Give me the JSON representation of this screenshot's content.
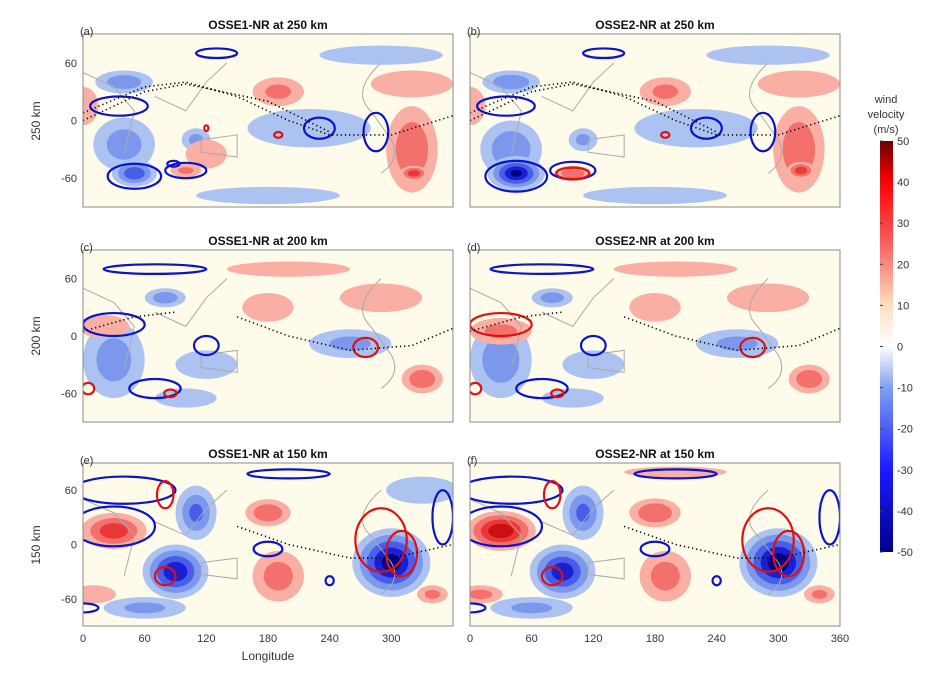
{
  "chart_data": {
    "type": "heatmap",
    "colorbar": {
      "label": [
        "wind",
        "velocity",
        "(m/s)"
      ],
      "range": [
        -50,
        50
      ],
      "ticks": [
        50,
        40,
        30,
        20,
        10,
        0,
        -10,
        -20,
        -30,
        -40,
        -50
      ],
      "colormap": {
        "negative_max": "#00008b",
        "negative": "#3344ee",
        "zero": "#fffdf2",
        "positive": "#ee2222",
        "positive_max": "#7a0000"
      }
    },
    "xlabel": "Longitude",
    "xlim": [
      0,
      360
    ],
    "ylim": [
      -90,
      90
    ],
    "xticks_left": [
      "0",
      "60",
      "120",
      "180",
      "240",
      "300"
    ],
    "xticks_right": [
      "0",
      "60",
      "120",
      "180",
      "240",
      "300",
      "360"
    ],
    "yticks": [
      "60",
      "0",
      "-60"
    ],
    "contour_colors": {
      "positive": "#dd1111",
      "negative": "#0a14c8",
      "track": "#000000"
    },
    "rows": [
      {
        "ylabel": "250 km"
      },
      {
        "ylabel": "200 km"
      },
      {
        "ylabel": "150 km"
      }
    ],
    "panels": [
      {
        "tag": "(a)",
        "title": "OSSE1-NR at 250 km",
        "field": [
          [
            40,
            40,
            28,
            12,
            -20
          ],
          [
            40,
            -25,
            30,
            28,
            -18
          ],
          [
            50,
            -55,
            22,
            14,
            -32
          ],
          [
            110,
            -20,
            14,
            12,
            -15
          ],
          [
            120,
            -35,
            20,
            15,
            6
          ],
          [
            100,
            -52,
            15,
            7,
            15
          ],
          [
            190,
            30,
            25,
            15,
            15
          ],
          [
            220,
            -8,
            60,
            20,
            -12
          ],
          [
            320,
            -30,
            25,
            45,
            22
          ],
          [
            322,
            -55,
            14,
            8,
            30
          ],
          [
            290,
            68,
            60,
            10,
            -12
          ],
          [
            180,
            -78,
            70,
            9,
            -12
          ],
          [
            320,
            38,
            40,
            14,
            10
          ],
          [
            0,
            15,
            15,
            20,
            8
          ]
        ],
        "contours": [
          [
            50,
            -58,
            26,
            13,
            -1
          ],
          [
            35,
            15,
            28,
            10,
            -1
          ],
          [
            130,
            70,
            20,
            5,
            -1
          ],
          [
            230,
            -8,
            15,
            11,
            -1
          ],
          [
            285,
            -12,
            12,
            20,
            -1
          ],
          [
            100,
            -52,
            20,
            8,
            -1
          ],
          [
            88,
            -45,
            6,
            3,
            -1
          ],
          [
            190,
            -15,
            4,
            3,
            1
          ],
          [
            120,
            -8,
            2,
            3,
            1
          ]
        ],
        "tracks": [
          [
            [
              0,
              8
            ],
            [
              60,
              35
            ],
            [
              100,
              40
            ],
            [
              150,
              25
            ],
            [
              200,
              0
            ],
            [
              240,
              -15
            ],
            [
              300,
              -15
            ],
            [
              360,
              5
            ]
          ],
          [
            [
              0,
              0
            ],
            [
              60,
              30
            ],
            [
              100,
              38
            ],
            [
              180,
              20
            ],
            [
              240,
              -12
            ]
          ]
        ]
      },
      {
        "tag": "(b)",
        "title": "OSSE2-NR at 250 km",
        "field": [
          [
            40,
            40,
            28,
            12,
            -22
          ],
          [
            40,
            -30,
            30,
            30,
            -22
          ],
          [
            45,
            -55,
            28,
            18,
            -45
          ],
          [
            110,
            -20,
            14,
            12,
            -15
          ],
          [
            100,
            -55,
            18,
            8,
            22
          ],
          [
            190,
            30,
            25,
            15,
            15
          ],
          [
            220,
            -8,
            60,
            20,
            -12
          ],
          [
            320,
            -30,
            25,
            45,
            22
          ],
          [
            322,
            -52,
            14,
            9,
            30
          ],
          [
            290,
            68,
            60,
            10,
            -12
          ],
          [
            180,
            -78,
            70,
            9,
            -12
          ],
          [
            320,
            38,
            40,
            14,
            12
          ],
          [
            0,
            15,
            15,
            20,
            8
          ]
        ],
        "contours": [
          [
            45,
            -58,
            30,
            16,
            -1
          ],
          [
            35,
            15,
            28,
            10,
            -1
          ],
          [
            130,
            70,
            20,
            5,
            -1
          ],
          [
            230,
            -8,
            15,
            11,
            -1
          ],
          [
            285,
            -12,
            12,
            20,
            -1
          ],
          [
            100,
            -52,
            22,
            9,
            -1
          ],
          [
            190,
            -15,
            4,
            3,
            1
          ],
          [
            100,
            -55,
            16,
            6,
            1
          ]
        ],
        "tracks": [
          [
            [
              0,
              8
            ],
            [
              60,
              35
            ],
            [
              100,
              40
            ],
            [
              150,
              25
            ],
            [
              200,
              0
            ],
            [
              240,
              -15
            ],
            [
              300,
              -15
            ],
            [
              360,
              5
            ]
          ],
          [
            [
              0,
              0
            ],
            [
              60,
              30
            ],
            [
              100,
              38
            ],
            [
              180,
              20
            ],
            [
              240,
              -12
            ]
          ]
        ]
      },
      {
        "tag": "(c)",
        "title": "OSSE1-NR at 200 km",
        "field": [
          [
            30,
            -25,
            30,
            40,
            -18
          ],
          [
            80,
            40,
            20,
            10,
            -20
          ],
          [
            20,
            10,
            25,
            12,
            10
          ],
          [
            180,
            30,
            25,
            15,
            10
          ],
          [
            260,
            -8,
            40,
            15,
            -15
          ],
          [
            290,
            40,
            40,
            15,
            10
          ],
          [
            120,
            -30,
            30,
            15,
            -12
          ],
          [
            330,
            -45,
            20,
            15,
            22
          ],
          [
            100,
            -65,
            30,
            10,
            -12
          ],
          [
            200,
            70,
            60,
            8,
            8
          ]
        ],
        "contours": [
          [
            70,
            70,
            50,
            5,
            -1
          ],
          [
            30,
            12,
            30,
            12,
            -1
          ],
          [
            70,
            -55,
            25,
            10,
            -1
          ],
          [
            120,
            -10,
            12,
            10,
            -1
          ],
          [
            275,
            -12,
            12,
            10,
            1
          ],
          [
            5,
            -55,
            6,
            6,
            1
          ],
          [
            85,
            -60,
            6,
            4,
            1
          ]
        ],
        "tracks": [
          [
            [
              0,
              5
            ],
            [
              50,
              20
            ],
            [
              90,
              25
            ]
          ],
          [
            [
              150,
              20
            ],
            [
              200,
              0
            ],
            [
              260,
              -15
            ],
            [
              320,
              -10
            ],
            [
              360,
              8
            ]
          ]
        ]
      },
      {
        "tag": "(d)",
        "title": "OSSE2-NR at 200 km",
        "field": [
          [
            30,
            -25,
            30,
            40,
            -20
          ],
          [
            80,
            40,
            20,
            10,
            -18
          ],
          [
            30,
            5,
            30,
            14,
            16
          ],
          [
            180,
            30,
            25,
            15,
            12
          ],
          [
            260,
            -8,
            40,
            15,
            -15
          ],
          [
            290,
            40,
            40,
            15,
            10
          ],
          [
            120,
            -30,
            30,
            15,
            -12
          ],
          [
            330,
            -45,
            20,
            15,
            22
          ],
          [
            100,
            -65,
            30,
            10,
            -12
          ],
          [
            200,
            70,
            60,
            8,
            8
          ]
        ],
        "contours": [
          [
            70,
            70,
            50,
            5,
            -1
          ],
          [
            30,
            12,
            30,
            12,
            1
          ],
          [
            70,
            -55,
            25,
            10,
            -1
          ],
          [
            120,
            -10,
            12,
            10,
            -1
          ],
          [
            275,
            -12,
            12,
            10,
            1
          ],
          [
            5,
            -55,
            6,
            6,
            1
          ],
          [
            85,
            -60,
            6,
            4,
            1
          ]
        ],
        "tracks": [
          [
            [
              0,
              5
            ],
            [
              50,
              20
            ],
            [
              90,
              25
            ]
          ],
          [
            [
              150,
              20
            ],
            [
              200,
              0
            ],
            [
              260,
              -15
            ],
            [
              320,
              -10
            ],
            [
              360,
              8
            ]
          ]
        ]
      },
      {
        "tag": "(e)",
        "title": "OSSE1-NR at 150 km",
        "field": [
          [
            30,
            15,
            32,
            20,
            30
          ],
          [
            90,
            -30,
            32,
            30,
            -42
          ],
          [
            110,
            35,
            20,
            30,
            -25
          ],
          [
            180,
            35,
            22,
            15,
            22
          ],
          [
            190,
            -35,
            25,
            28,
            18
          ],
          [
            300,
            -20,
            38,
            38,
            -48
          ],
          [
            340,
            -55,
            15,
            10,
            15
          ],
          [
            10,
            -55,
            22,
            10,
            14
          ],
          [
            60,
            -70,
            40,
            12,
            -15
          ],
          [
            330,
            60,
            35,
            15,
            -10
          ]
        ],
        "contours": [
          [
            40,
            60,
            50,
            15,
            -1
          ],
          [
            30,
            20,
            40,
            22,
            -1
          ],
          [
            180,
            -5,
            14,
            8,
            -1
          ],
          [
            80,
            -35,
            10,
            10,
            1
          ],
          [
            80,
            55,
            8,
            15,
            1
          ],
          [
            290,
            5,
            25,
            35,
            1
          ],
          [
            310,
            -10,
            15,
            25,
            1
          ],
          [
            200,
            78,
            40,
            5,
            -1
          ],
          [
            0,
            -70,
            15,
            5,
            -1
          ],
          [
            350,
            30,
            10,
            30,
            -1
          ],
          [
            240,
            -40,
            4,
            5,
            -1
          ]
        ],
        "tracks": [
          [
            [
              150,
              20
            ],
            [
              200,
              0
            ],
            [
              260,
              -15
            ],
            [
              300,
              -15
            ],
            [
              360,
              0
            ]
          ]
        ]
      },
      {
        "tag": "(f)",
        "title": "OSSE2-NR at 150 km",
        "field": [
          [
            30,
            15,
            34,
            22,
            42
          ],
          [
            90,
            -30,
            32,
            30,
            -40
          ],
          [
            110,
            35,
            20,
            30,
            -25
          ],
          [
            180,
            35,
            25,
            16,
            24
          ],
          [
            190,
            -35,
            25,
            28,
            18
          ],
          [
            300,
            -20,
            38,
            38,
            -50
          ],
          [
            340,
            -55,
            15,
            10,
            15
          ],
          [
            10,
            -55,
            22,
            10,
            16
          ],
          [
            60,
            -70,
            40,
            12,
            -15
          ],
          [
            200,
            80,
            50,
            6,
            12
          ]
        ],
        "contours": [
          [
            40,
            60,
            50,
            15,
            -1
          ],
          [
            30,
            20,
            40,
            22,
            -1
          ],
          [
            180,
            -5,
            14,
            8,
            -1
          ],
          [
            80,
            -35,
            10,
            10,
            1
          ],
          [
            80,
            55,
            8,
            15,
            1
          ],
          [
            290,
            5,
            25,
            35,
            1
          ],
          [
            310,
            -10,
            15,
            25,
            1
          ],
          [
            200,
            78,
            40,
            5,
            -1
          ],
          [
            0,
            -70,
            15,
            5,
            -1
          ],
          [
            350,
            30,
            10,
            30,
            -1
          ],
          [
            240,
            -40,
            4,
            5,
            -1
          ]
        ],
        "tracks": [
          [
            [
              150,
              20
            ],
            [
              200,
              0
            ],
            [
              260,
              -15
            ],
            [
              300,
              -15
            ],
            [
              360,
              0
            ]
          ]
        ]
      }
    ]
  }
}
